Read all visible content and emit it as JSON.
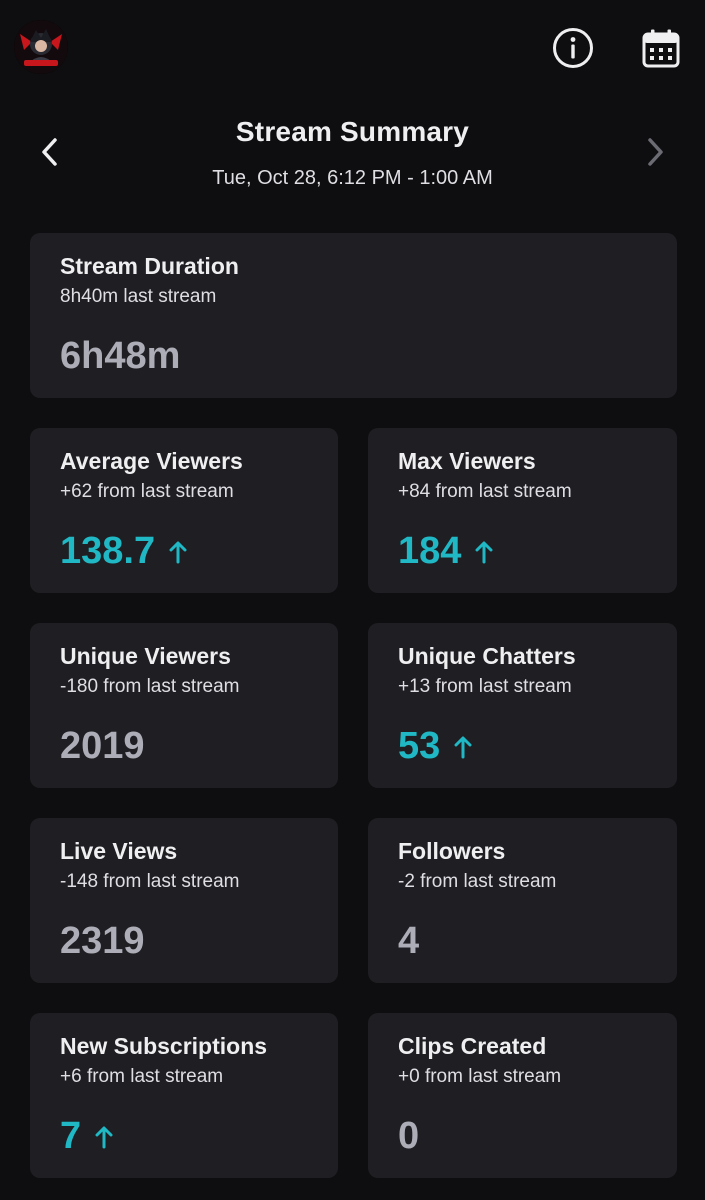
{
  "header": {
    "title": "Stream Summary",
    "date_range": "Tue, Oct 28, 6:12 PM - 1:00 AM"
  },
  "icons": {
    "avatar": "channel-avatar",
    "info": "info-icon",
    "calendar": "calendar-icon",
    "prev": "chevron-left-icon",
    "next": "chevron-right-icon",
    "trend_up": "arrow-up-icon"
  },
  "colors": {
    "background": "#0e0e10",
    "card": "#1f1f23",
    "accent_up": "#1fb8c4",
    "value_neutral": "#adadb8"
  },
  "stats": [
    {
      "id": "stream-duration",
      "title": "Stream Duration",
      "comparison": "8h40m last stream",
      "value": "6h48m",
      "trend": "none"
    },
    {
      "id": "average-viewers",
      "title": "Average Viewers",
      "comparison": "+62 from last stream",
      "value": "138.7",
      "trend": "up"
    },
    {
      "id": "max-viewers",
      "title": "Max Viewers",
      "comparison": "+84 from last stream",
      "value": "184",
      "trend": "up"
    },
    {
      "id": "unique-viewers",
      "title": "Unique Viewers",
      "comparison": "-180 from last stream",
      "value": "2019",
      "trend": "none"
    },
    {
      "id": "unique-chatters",
      "title": "Unique Chatters",
      "comparison": "+13 from last stream",
      "value": "53",
      "trend": "up"
    },
    {
      "id": "live-views",
      "title": "Live Views",
      "comparison": "-148 from last stream",
      "value": "2319",
      "trend": "none"
    },
    {
      "id": "followers",
      "title": "Followers",
      "comparison": "-2 from last stream",
      "value": "4",
      "trend": "none"
    },
    {
      "id": "new-subscriptions",
      "title": "New Subscriptions",
      "comparison": "+6 from last stream",
      "value": "7",
      "trend": "up"
    },
    {
      "id": "clips-created",
      "title": "Clips Created",
      "comparison": "+0 from last stream",
      "value": "0",
      "trend": "none"
    }
  ]
}
